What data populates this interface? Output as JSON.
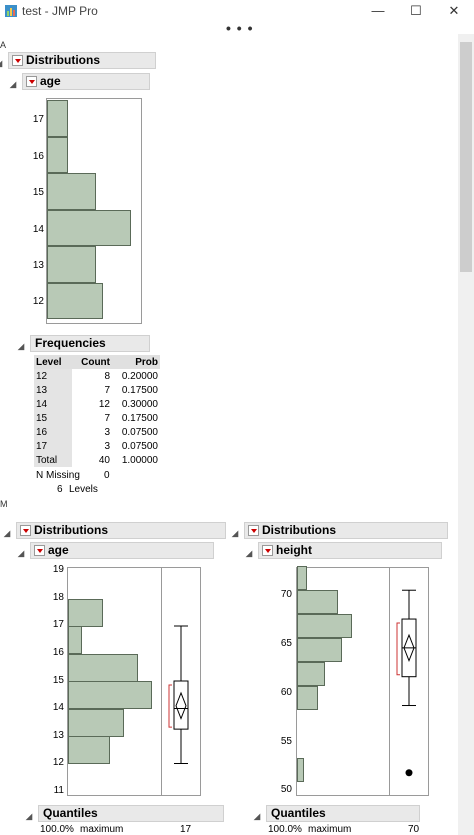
{
  "window": {
    "title": "test - JMP Pro",
    "minimize": "—",
    "maximize": "☐",
    "close": "✕",
    "overflow": "• • •"
  },
  "edge_letters": {
    "a": "A",
    "m": "M"
  },
  "top": {
    "distributions_label": "Distributions",
    "age_label": "age",
    "histogram": {
      "ticks": [
        "17",
        "16",
        "15",
        "14",
        "13",
        "12"
      ],
      "values": [
        {
          "level": "12",
          "count": 8
        },
        {
          "level": "13",
          "count": 7
        },
        {
          "level": "14",
          "count": 12
        },
        {
          "level": "15",
          "count": 7
        },
        {
          "level": "16",
          "count": 3
        },
        {
          "level": "17",
          "count": 3
        }
      ]
    },
    "frequencies": {
      "label": "Frequencies",
      "headers": [
        "Level",
        "Count",
        "Prob"
      ],
      "rows": [
        [
          "12",
          "8",
          "0.20000"
        ],
        [
          "13",
          "7",
          "0.17500"
        ],
        [
          "14",
          "12",
          "0.30000"
        ],
        [
          "15",
          "7",
          "0.17500"
        ],
        [
          "16",
          "3",
          "0.07500"
        ],
        [
          "17",
          "3",
          "0.07500"
        ],
        [
          "Total",
          "40",
          "1.00000"
        ]
      ],
      "n_missing_label": "N Missing",
      "n_missing_value": "0",
      "levels_count": "6",
      "levels_label": "Levels"
    }
  },
  "bottom_left": {
    "distributions_label": "Distributions",
    "age_label": "age",
    "ticks": [
      "19",
      "18",
      "17",
      "16",
      "15",
      "14",
      "13",
      "12",
      "11"
    ],
    "quantiles_label": "Quantiles",
    "quantile_row": {
      "pct": "100.0%",
      "name": "maximum",
      "value": "17"
    }
  },
  "bottom_right": {
    "distributions_label": "Distributions",
    "height_label": "height",
    "ticks": [
      "70",
      "65",
      "60",
      "55",
      "50"
    ],
    "quantiles_label": "Quantiles",
    "quantile_row": {
      "pct": "100.0%",
      "name": "maximum",
      "value": "70"
    }
  },
  "chart_data": [
    {
      "type": "bar",
      "orientation": "horizontal",
      "categories": [
        "12",
        "13",
        "14",
        "15",
        "16",
        "17"
      ],
      "values": [
        8,
        7,
        12,
        7,
        3,
        3
      ],
      "title": "age"
    },
    {
      "type": "bar",
      "orientation": "horizontal",
      "title": "age",
      "bins": [
        [
          12,
          13
        ],
        [
          13,
          14
        ],
        [
          14,
          15
        ],
        [
          15,
          16
        ],
        [
          16,
          17
        ],
        [
          17,
          18
        ]
      ],
      "values": [
        6,
        8,
        12,
        10,
        2,
        5
      ],
      "ylim": [
        11,
        19
      ],
      "boxplot": {
        "min": 12,
        "q1": 13.25,
        "median": 14,
        "q3": 15,
        "max": 17,
        "mean": 14.1
      }
    },
    {
      "type": "bar",
      "orientation": "horizontal",
      "title": "height",
      "bins": [
        [
          50,
          52.5
        ],
        [
          57.5,
          60
        ],
        [
          60,
          62.5
        ],
        [
          62.5,
          65
        ],
        [
          65,
          67.5
        ],
        [
          67.5,
          70
        ],
        [
          70,
          72.5
        ]
      ],
      "values": [
        2,
        6,
        8,
        13,
        16,
        12,
        3
      ],
      "ylim": [
        49,
        72
      ],
      "boxplot": {
        "min": 58,
        "q1": 61,
        "median": 64,
        "q3": 67,
        "max": 70,
        "mean": 64,
        "outliers": [
          51
        ]
      }
    }
  ]
}
